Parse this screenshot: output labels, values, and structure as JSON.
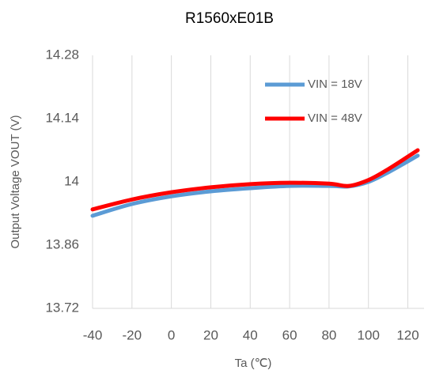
{
  "chart_data": {
    "type": "line",
    "title": "R1560xE01B",
    "x_label": "Ta (℃)",
    "y_label": "Output Voltage VOUT (V)",
    "x": [
      -40,
      -20,
      0,
      20,
      40,
      60,
      80,
      90,
      100,
      110,
      125
    ],
    "series": [
      {
        "name": "VIN = 18V",
        "color": "#5b9bd5",
        "values": [
          13.925,
          13.951,
          13.968,
          13.979,
          13.986,
          13.991,
          13.991,
          13.99,
          14.0,
          14.021,
          14.058
        ]
      },
      {
        "name": "VIN = 48V",
        "color": "#ff0000",
        "values": [
          13.939,
          13.961,
          13.977,
          13.988,
          13.995,
          13.998,
          13.996,
          13.991,
          14.004,
          14.028,
          14.07
        ]
      }
    ],
    "xlim": [
      -40,
      125
    ],
    "xticks": [
      -40,
      -20,
      0,
      20,
      40,
      60,
      80,
      100,
      120
    ],
    "ylim": [
      13.72,
      14.28
    ],
    "yticks": [
      13.72,
      13.86,
      14,
      14.14,
      14.28
    ],
    "grid": true,
    "legend": "upper right"
  }
}
